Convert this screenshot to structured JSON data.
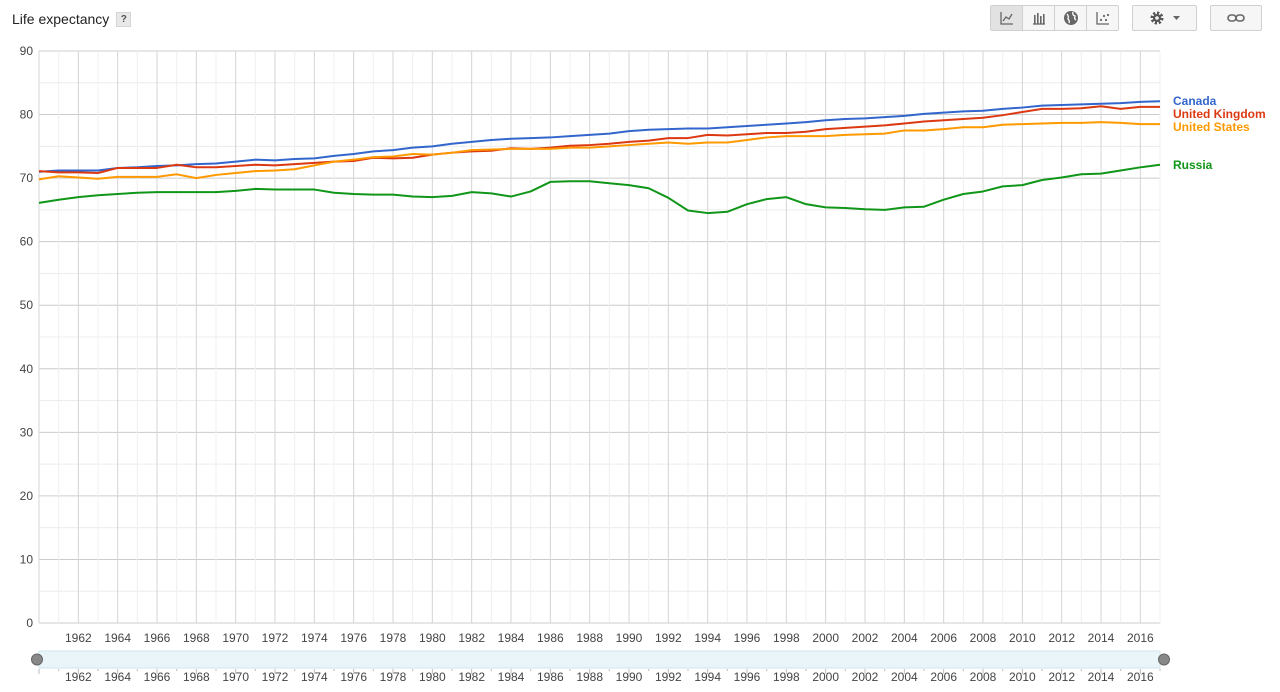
{
  "header": {
    "title": "Life expectancy",
    "help_label": "?"
  },
  "toolbar": {
    "buttons": [
      {
        "icon": "line-chart-icon",
        "active": true
      },
      {
        "icon": "bar-chart-icon",
        "active": false
      },
      {
        "icon": "globe-icon",
        "active": false
      },
      {
        "icon": "scatter-icon",
        "active": false
      }
    ],
    "settings_icon": "gear-icon",
    "link_icon": "link-icon"
  },
  "chart_data": {
    "type": "line",
    "title": "Life expectancy",
    "x": [
      1960,
      1961,
      1962,
      1963,
      1964,
      1965,
      1966,
      1967,
      1968,
      1969,
      1970,
      1971,
      1972,
      1973,
      1974,
      1975,
      1976,
      1977,
      1978,
      1979,
      1980,
      1981,
      1982,
      1983,
      1984,
      1985,
      1986,
      1987,
      1988,
      1989,
      1990,
      1991,
      1992,
      1993,
      1994,
      1995,
      1996,
      1997,
      1998,
      1999,
      2000,
      2001,
      2002,
      2003,
      2004,
      2005,
      2006,
      2007,
      2008,
      2009,
      2010,
      2011,
      2012,
      2013,
      2014,
      2015,
      2016,
      2017
    ],
    "xlim": [
      1960,
      2017
    ],
    "x_tick_labels": [
      "1962",
      "1964",
      "1966",
      "1968",
      "1970",
      "1972",
      "1974",
      "1976",
      "1978",
      "1980",
      "1982",
      "1984",
      "1986",
      "1988",
      "1990",
      "1992",
      "1994",
      "1996",
      "1998",
      "2000",
      "2002",
      "2004",
      "2006",
      "2008",
      "2010",
      "2012",
      "2014",
      "2016"
    ],
    "ylim": [
      0,
      90
    ],
    "y_ticks": [
      0,
      10,
      20,
      30,
      40,
      50,
      60,
      70,
      80,
      90
    ],
    "grid": true,
    "legend": "right-end-labels",
    "series": [
      {
        "name": "Canada",
        "color": "#3366cc",
        "values": [
          71.0,
          71.2,
          71.2,
          71.2,
          71.6,
          71.7,
          71.9,
          72.0,
          72.2,
          72.3,
          72.6,
          72.9,
          72.8,
          73.0,
          73.1,
          73.5,
          73.8,
          74.2,
          74.4,
          74.8,
          75.0,
          75.4,
          75.7,
          76.0,
          76.2,
          76.3,
          76.4,
          76.6,
          76.8,
          77.0,
          77.4,
          77.6,
          77.7,
          77.8,
          77.8,
          78.0,
          78.2,
          78.4,
          78.6,
          78.8,
          79.1,
          79.3,
          79.4,
          79.6,
          79.8,
          80.1,
          80.3,
          80.5,
          80.6,
          80.9,
          81.1,
          81.4,
          81.5,
          81.6,
          81.7,
          81.8,
          82.0,
          82.1
        ]
      },
      {
        "name": "United Kingdom",
        "color": "#dc3912",
        "values": [
          71.1,
          70.9,
          70.9,
          70.8,
          71.6,
          71.6,
          71.6,
          72.1,
          71.7,
          71.7,
          71.9,
          72.1,
          72.0,
          72.2,
          72.4,
          72.6,
          72.7,
          73.2,
          73.1,
          73.2,
          73.7,
          74.0,
          74.2,
          74.3,
          74.7,
          74.6,
          74.8,
          75.1,
          75.2,
          75.4,
          75.7,
          75.9,
          76.3,
          76.3,
          76.8,
          76.7,
          76.9,
          77.1,
          77.1,
          77.3,
          77.7,
          77.9,
          78.1,
          78.3,
          78.6,
          78.9,
          79.1,
          79.3,
          79.5,
          79.9,
          80.4,
          80.9,
          80.9,
          81.0,
          81.3,
          80.9,
          81.2,
          81.2
        ]
      },
      {
        "name": "United States",
        "color": "#ff9900",
        "values": [
          69.8,
          70.3,
          70.1,
          69.9,
          70.2,
          70.2,
          70.2,
          70.6,
          70.0,
          70.5,
          70.8,
          71.1,
          71.2,
          71.4,
          72.0,
          72.6,
          72.9,
          73.3,
          73.4,
          73.8,
          73.7,
          74.0,
          74.4,
          74.5,
          74.6,
          74.6,
          74.6,
          74.8,
          74.8,
          75.0,
          75.2,
          75.4,
          75.6,
          75.4,
          75.6,
          75.6,
          76.0,
          76.4,
          76.6,
          76.6,
          76.6,
          76.8,
          76.9,
          77.0,
          77.5,
          77.5,
          77.7,
          78.0,
          78.0,
          78.4,
          78.5,
          78.6,
          78.7,
          78.7,
          78.8,
          78.7,
          78.5,
          78.5
        ]
      },
      {
        "name": "Russia",
        "color": "#109618",
        "values": [
          66.1,
          66.6,
          67.0,
          67.3,
          67.5,
          67.7,
          67.8,
          67.8,
          67.8,
          67.8,
          68.0,
          68.3,
          68.2,
          68.2,
          68.2,
          67.7,
          67.5,
          67.4,
          67.4,
          67.1,
          67.0,
          67.2,
          67.8,
          67.6,
          67.1,
          67.9,
          69.4,
          69.5,
          69.5,
          69.2,
          68.9,
          68.4,
          66.9,
          64.9,
          64.5,
          64.7,
          65.9,
          66.7,
          67.0,
          65.9,
          65.4,
          65.3,
          65.1,
          65.0,
          65.4,
          65.5,
          66.6,
          67.5,
          67.9,
          68.7,
          68.9,
          69.7,
          70.1,
          70.6,
          70.7,
          71.2,
          71.7,
          72.1
        ]
      }
    ]
  }
}
